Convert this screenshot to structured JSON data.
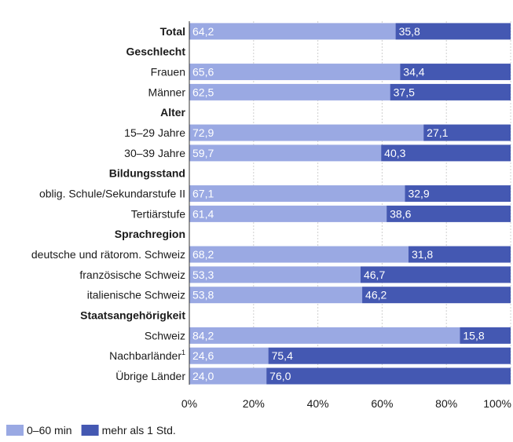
{
  "chart_data": {
    "type": "bar",
    "orientation": "horizontal",
    "stacked": true,
    "rows": [
      {
        "label": "Total",
        "bold": true,
        "values": [
          64.2,
          35.8
        ],
        "labels": [
          "64,2",
          "35,8"
        ]
      },
      {
        "label": "Geschlecht",
        "bold": true,
        "header": true
      },
      {
        "label": "Frauen",
        "values": [
          65.6,
          34.4
        ],
        "labels": [
          "65,6",
          "34,4"
        ]
      },
      {
        "label": "Männer",
        "values": [
          62.5,
          37.5
        ],
        "labels": [
          "62,5",
          "37,5"
        ]
      },
      {
        "label": "Alter",
        "bold": true,
        "header": true
      },
      {
        "label": "15–29 Jahre",
        "values": [
          72.9,
          27.1
        ],
        "labels": [
          "72,9",
          "27,1"
        ]
      },
      {
        "label": "30–39 Jahre",
        "values": [
          59.7,
          40.3
        ],
        "labels": [
          "59,7",
          "40,3"
        ]
      },
      {
        "label": "Bildungsstand",
        "bold": true,
        "header": true
      },
      {
        "label": "oblig. Schule/Sekundarstufe II",
        "values": [
          67.1,
          32.9
        ],
        "labels": [
          "67,1",
          "32,9"
        ]
      },
      {
        "label": "Tertiärstufe",
        "values": [
          61.4,
          38.6
        ],
        "labels": [
          "61,4",
          "38,6"
        ]
      },
      {
        "label": "Sprachregion",
        "bold": true,
        "header": true
      },
      {
        "label": "deutsche und rätorom. Schweiz",
        "values": [
          68.2,
          31.8
        ],
        "labels": [
          "68,2",
          "31,8"
        ]
      },
      {
        "label": "französische Schweiz",
        "values": [
          53.3,
          46.7
        ],
        "labels": [
          "53,3",
          "46,7"
        ]
      },
      {
        "label": "italienische Schweiz",
        "values": [
          53.8,
          46.2
        ],
        "labels": [
          "53,8",
          "46,2"
        ]
      },
      {
        "label": "Staatsangehörigkeit",
        "bold": true,
        "header": true
      },
      {
        "label": "Schweiz",
        "values": [
          84.2,
          15.8
        ],
        "labels": [
          "84,2",
          "15,8"
        ]
      },
      {
        "label": "Nachbarländer",
        "sup": "1",
        "values": [
          24.6,
          75.4
        ],
        "labels": [
          "24,6",
          "75,4"
        ]
      },
      {
        "label": "Übrige Länder",
        "values": [
          24.0,
          76.0
        ],
        "labels": [
          "24,0",
          "76,0"
        ]
      }
    ],
    "series": [
      {
        "name": "0–60 min",
        "color": "#9aa9e3"
      },
      {
        "name": "mehr als 1 Std.",
        "color": "#4458b2"
      }
    ],
    "xlim": [
      0,
      100
    ],
    "xticks": [
      "0%",
      "20%",
      "40%",
      "60%",
      "80%",
      "100%"
    ],
    "grid": true,
    "legend": "bottom-left"
  }
}
